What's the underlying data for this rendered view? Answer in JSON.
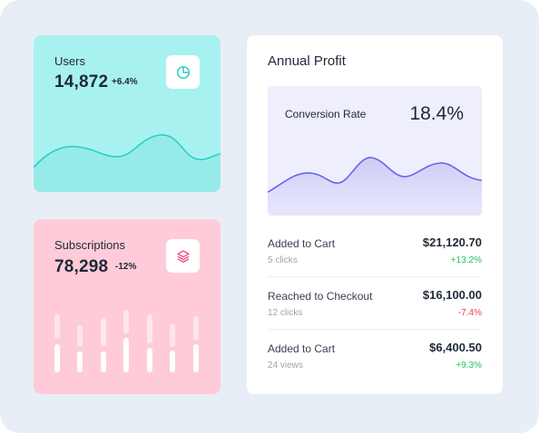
{
  "users_card": {
    "title": "Users",
    "value": "14,872",
    "delta": "+6.4%",
    "icon": "pie-chart-icon",
    "bg_color": "#a8f1f1",
    "line_color": "#2ccfc4"
  },
  "subscriptions_card": {
    "title": "Subscriptions",
    "value": "78,298",
    "delta": "-12%",
    "icon": "layers-icon",
    "bg_color": "#ffcbd8"
  },
  "profit_card": {
    "title": "Annual Profit",
    "conversion": {
      "label": "Conversion Rate",
      "value": "18.4%",
      "line_color": "#6366f1"
    },
    "rows": [
      {
        "label": "Added to Cart",
        "sub": "5 clicks",
        "amount": "$21,120.70",
        "change": "+13.2%"
      },
      {
        "label": "Reached to Checkout",
        "sub": "12 clicks",
        "amount": "$16,100.00",
        "change": "-7.4%"
      },
      {
        "label": "Added to Cart",
        "sub": "24 views",
        "amount": "$6,400.50",
        "change": "+9.3%"
      }
    ]
  },
  "colors": {
    "positive": "#22c55e",
    "negative": "#ef4444",
    "icon_accent_teal": "#2ccfc4",
    "icon_accent_pink": "#f0557a"
  }
}
